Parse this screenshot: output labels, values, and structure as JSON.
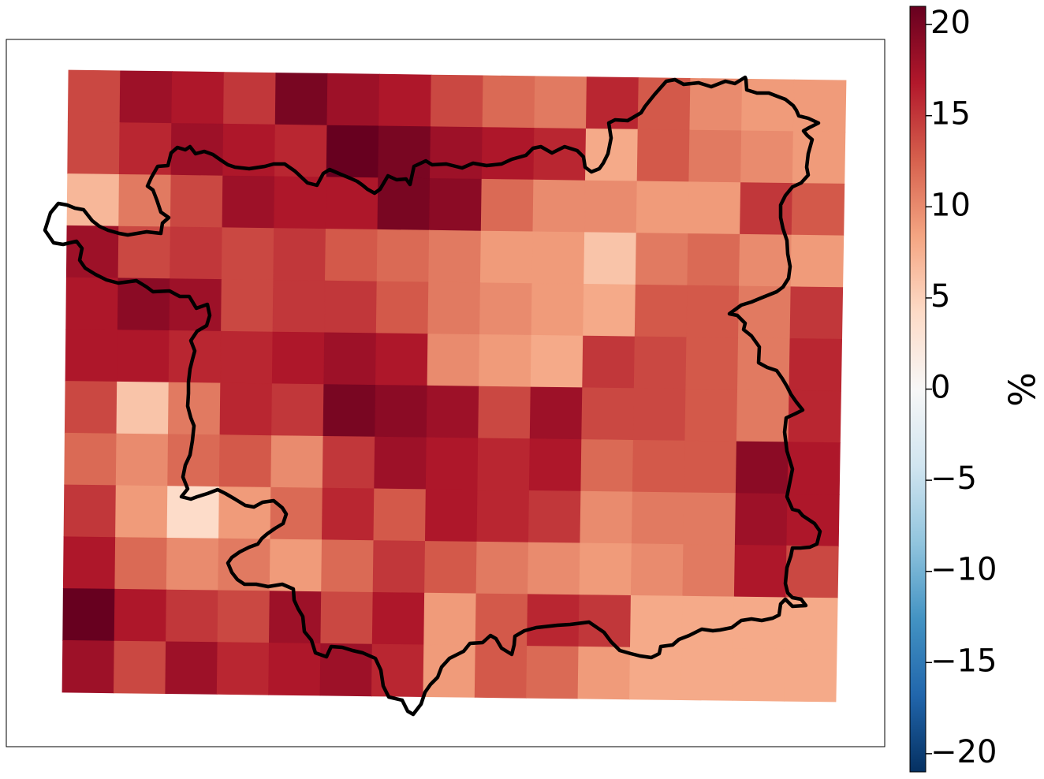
{
  "chart_data": {
    "type": "heatmap",
    "title": "",
    "colormap": "RdBu_r",
    "value_range": [
      -21,
      21
    ],
    "colorbar": {
      "label": "%",
      "ticks": [
        -20,
        -15,
        -10,
        -5,
        0,
        5,
        10,
        15,
        20
      ],
      "tick_labels": [
        "−20",
        "−15",
        "−10",
        "−5",
        "0",
        "5",
        "10",
        "15",
        "20"
      ]
    },
    "grid_rows": 12,
    "grid_cols": 15,
    "values": [
      [
        14,
        18,
        17,
        15,
        20,
        18,
        17,
        14,
        12,
        11,
        16,
        13,
        10,
        9,
        9
      ],
      [
        14,
        16,
        18,
        17,
        16,
        21,
        20,
        18,
        17,
        16,
        8,
        13,
        11,
        10,
        9
      ],
      [
        7,
        11,
        14,
        18,
        17,
        17,
        20,
        19,
        12,
        10,
        10,
        9,
        9,
        15,
        13
      ],
      [
        18,
        14,
        15,
        14,
        15,
        13,
        12,
        11,
        9,
        9,
        6,
        11,
        12,
        10,
        9
      ],
      [
        17,
        19,
        18,
        14,
        15,
        15,
        13,
        11,
        10,
        9,
        8,
        13,
        13,
        11,
        15
      ],
      [
        17,
        17,
        16,
        16,
        17,
        18,
        17,
        10,
        9,
        8,
        15,
        14,
        13,
        11,
        16
      ],
      [
        14,
        6,
        11,
        16,
        15,
        20,
        19,
        18,
        14,
        18,
        14,
        14,
        13,
        11,
        16
      ],
      [
        12,
        10,
        12,
        13,
        10,
        15,
        18,
        17,
        16,
        17,
        12,
        13,
        13,
        19,
        17
      ],
      [
        15,
        9,
        4,
        9,
        12,
        16,
        13,
        17,
        16,
        15,
        10,
        11,
        11,
        18,
        17
      ],
      [
        17,
        12,
        10,
        11,
        9,
        12,
        15,
        13,
        11,
        10,
        9,
        10,
        11,
        17,
        14
      ],
      [
        21,
        17,
        15,
        14,
        18,
        14,
        17,
        9,
        13,
        16,
        15,
        8,
        8,
        8,
        8
      ],
      [
        18,
        14,
        18,
        16,
        17,
        18,
        16,
        9,
        13,
        12,
        9,
        8,
        8,
        8,
        8
      ]
    ]
  }
}
